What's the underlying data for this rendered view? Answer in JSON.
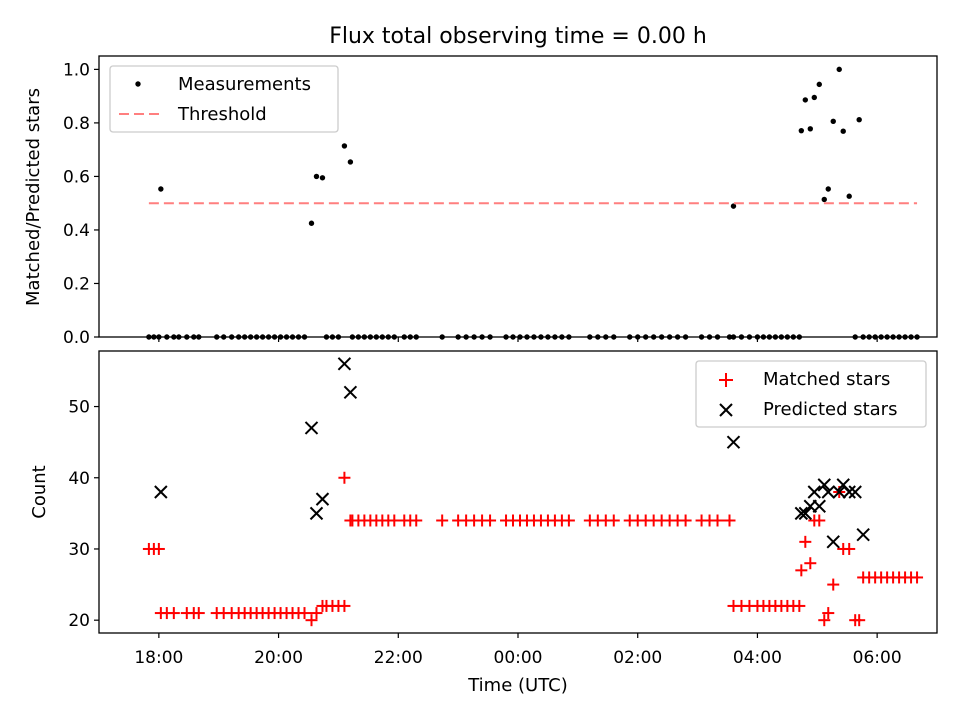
{
  "chart_data": [
    {
      "type": "scatter",
      "title": "Flux total observing time = 0.00 h",
      "xlabel": "",
      "ylabel": "Matched/Predicted stars",
      "xlim": [
        "17:00",
        "07:00"
      ],
      "ylim": [
        0,
        1.05
      ],
      "xticks": [
        "18:00",
        "20:00",
        "22:00",
        "00:00",
        "02:00",
        "04:00",
        "06:00"
      ],
      "yticks": [
        "0.0",
        "0.2",
        "0.4",
        "0.6",
        "0.8",
        "1.0"
      ],
      "legend_position": "upper-left",
      "grid": false,
      "legend": [
        "Measurements",
        "Threshold"
      ],
      "colors": {
        "measurements": "#000000",
        "threshold": "#ff7f7f"
      },
      "threshold": {
        "name": "Threshold",
        "y": 0.5,
        "x_range": [
          "17:50",
          "06:40"
        ]
      },
      "measurements": [
        [
          "17:50",
          0
        ],
        [
          "17:55",
          0
        ],
        [
          "18:00",
          0
        ],
        [
          "18:02",
          0.553
        ],
        [
          "18:08",
          0
        ],
        [
          "18:15",
          0
        ],
        [
          "18:20",
          0
        ],
        [
          "18:28",
          0
        ],
        [
          "18:35",
          0
        ],
        [
          "18:40",
          0
        ],
        [
          "18:58",
          0
        ],
        [
          "19:05",
          0
        ],
        [
          "19:13",
          0
        ],
        [
          "19:20",
          0
        ],
        [
          "19:26",
          0
        ],
        [
          "19:32",
          0
        ],
        [
          "19:38",
          0
        ],
        [
          "19:44",
          0
        ],
        [
          "19:50",
          0
        ],
        [
          "19:56",
          0
        ],
        [
          "20:02",
          0
        ],
        [
          "20:08",
          0
        ],
        [
          "20:14",
          0
        ],
        [
          "20:20",
          0
        ],
        [
          "20:26",
          0
        ],
        [
          "20:33",
          0.425
        ],
        [
          "20:38",
          0.6
        ],
        [
          "20:44",
          0.595
        ],
        [
          "20:48",
          0
        ],
        [
          "20:54",
          0
        ],
        [
          "21:00",
          0
        ],
        [
          "21:06",
          0.714
        ],
        [
          "21:12",
          0.654
        ],
        [
          "21:14",
          0
        ],
        [
          "21:20",
          0
        ],
        [
          "21:26",
          0
        ],
        [
          "21:32",
          0
        ],
        [
          "21:38",
          0
        ],
        [
          "21:44",
          0
        ],
        [
          "21:50",
          0
        ],
        [
          "21:56",
          0
        ],
        [
          "22:06",
          0
        ],
        [
          "22:12",
          0
        ],
        [
          "22:18",
          0
        ],
        [
          "22:44",
          0
        ],
        [
          "23:00",
          0
        ],
        [
          "23:08",
          0
        ],
        [
          "23:16",
          0
        ],
        [
          "23:24",
          0
        ],
        [
          "23:32",
          0
        ],
        [
          "23:48",
          0
        ],
        [
          "23:55",
          0
        ],
        [
          "00:02",
          0
        ],
        [
          "00:09",
          0
        ],
        [
          "00:16",
          0
        ],
        [
          "00:23",
          0
        ],
        [
          "00:30",
          0
        ],
        [
          "00:37",
          0
        ],
        [
          "00:44",
          0
        ],
        [
          "00:51",
          0
        ],
        [
          "01:12",
          0
        ],
        [
          "01:20",
          0
        ],
        [
          "01:28",
          0
        ],
        [
          "01:36",
          0
        ],
        [
          "01:52",
          0
        ],
        [
          "02:00",
          0
        ],
        [
          "02:08",
          0
        ],
        [
          "02:16",
          0
        ],
        [
          "02:24",
          0
        ],
        [
          "02:32",
          0
        ],
        [
          "02:40",
          0
        ],
        [
          "02:48",
          0
        ],
        [
          "03:04",
          0
        ],
        [
          "03:12",
          0
        ],
        [
          "03:20",
          0
        ],
        [
          "03:32",
          0
        ],
        [
          "03:36",
          0
        ],
        [
          "03:36",
          0.489
        ],
        [
          "03:44",
          0
        ],
        [
          "03:52",
          0
        ],
        [
          "04:00",
          0
        ],
        [
          "04:06",
          0
        ],
        [
          "04:12",
          0
        ],
        [
          "04:18",
          0
        ],
        [
          "04:24",
          0
        ],
        [
          "04:30",
          0
        ],
        [
          "04:36",
          0
        ],
        [
          "04:42",
          0
        ],
        [
          "04:44",
          0.771
        ],
        [
          "04:48",
          0.886
        ],
        [
          "04:53",
          0.778
        ],
        [
          "04:57",
          0.895
        ],
        [
          "05:02",
          0.944
        ],
        [
          "05:07",
          0.514
        ],
        [
          "05:11",
          0.553
        ],
        [
          "05:16",
          0.806
        ],
        [
          "05:22",
          1.0
        ],
        [
          "05:26",
          0.769
        ],
        [
          "05:32",
          0.526
        ],
        [
          "05:38",
          0
        ],
        [
          "05:42",
          0.812
        ],
        [
          "05:46",
          0
        ],
        [
          "05:52",
          0
        ],
        [
          "05:58",
          0
        ],
        [
          "06:04",
          0
        ],
        [
          "06:10",
          0
        ],
        [
          "06:16",
          0
        ],
        [
          "06:22",
          0
        ],
        [
          "06:28",
          0
        ],
        [
          "06:34",
          0
        ],
        [
          "06:40",
          0
        ]
      ]
    },
    {
      "type": "scatter",
      "title": "",
      "xlabel": "Time (UTC)",
      "ylabel": "Count",
      "xlim": [
        "17:00",
        "07:00"
      ],
      "ylim": [
        18.2,
        57.8
      ],
      "xticks": [
        "18:00",
        "20:00",
        "22:00",
        "00:00",
        "02:00",
        "04:00",
        "06:00"
      ],
      "yticks": [
        "20",
        "30",
        "40",
        "50"
      ],
      "legend_position": "upper-right",
      "grid": false,
      "legend": [
        "Matched stars",
        "Predicted stars"
      ],
      "colors": {
        "matched": "#ff0000",
        "predicted": "#000000"
      },
      "series": [
        {
          "name": "Matched stars",
          "marker": "+",
          "points": [
            [
              "17:50",
              30
            ],
            [
              "17:55",
              30
            ],
            [
              "18:00",
              30
            ],
            [
              "18:02",
              21
            ],
            [
              "18:08",
              21
            ],
            [
              "18:15",
              21
            ],
            [
              "18:28",
              21
            ],
            [
              "18:35",
              21
            ],
            [
              "18:40",
              21
            ],
            [
              "18:58",
              21
            ],
            [
              "19:05",
              21
            ],
            [
              "19:13",
              21
            ],
            [
              "19:20",
              21
            ],
            [
              "19:26",
              21
            ],
            [
              "19:32",
              21
            ],
            [
              "19:38",
              21
            ],
            [
              "19:44",
              21
            ],
            [
              "19:50",
              21
            ],
            [
              "19:56",
              21
            ],
            [
              "20:02",
              21
            ],
            [
              "20:08",
              21
            ],
            [
              "20:14",
              21
            ],
            [
              "20:20",
              21
            ],
            [
              "20:26",
              21
            ],
            [
              "20:33",
              20
            ],
            [
              "20:38",
              21
            ],
            [
              "20:44",
              22
            ],
            [
              "20:48",
              22
            ],
            [
              "20:54",
              22
            ],
            [
              "21:00",
              22
            ],
            [
              "21:06",
              22
            ],
            [
              "21:06",
              40
            ],
            [
              "21:12",
              34
            ],
            [
              "21:14",
              34
            ],
            [
              "21:20",
              34
            ],
            [
              "21:26",
              34
            ],
            [
              "21:32",
              34
            ],
            [
              "21:38",
              34
            ],
            [
              "21:44",
              34
            ],
            [
              "21:50",
              34
            ],
            [
              "21:56",
              34
            ],
            [
              "22:06",
              34
            ],
            [
              "22:12",
              34
            ],
            [
              "22:18",
              34
            ],
            [
              "22:44",
              34
            ],
            [
              "23:00",
              34
            ],
            [
              "23:08",
              34
            ],
            [
              "23:16",
              34
            ],
            [
              "23:24",
              34
            ],
            [
              "23:32",
              34
            ],
            [
              "23:48",
              34
            ],
            [
              "23:55",
              34
            ],
            [
              "00:02",
              34
            ],
            [
              "00:09",
              34
            ],
            [
              "00:16",
              34
            ],
            [
              "00:23",
              34
            ],
            [
              "00:30",
              34
            ],
            [
              "00:37",
              34
            ],
            [
              "00:44",
              34
            ],
            [
              "00:51",
              34
            ],
            [
              "01:12",
              34
            ],
            [
              "01:20",
              34
            ],
            [
              "01:28",
              34
            ],
            [
              "01:36",
              34
            ],
            [
              "01:52",
              34
            ],
            [
              "02:00",
              34
            ],
            [
              "02:08",
              34
            ],
            [
              "02:16",
              34
            ],
            [
              "02:24",
              34
            ],
            [
              "02:32",
              34
            ],
            [
              "02:40",
              34
            ],
            [
              "02:48",
              34
            ],
            [
              "03:04",
              34
            ],
            [
              "03:12",
              34
            ],
            [
              "03:20",
              34
            ],
            [
              "03:32",
              34
            ],
            [
              "03:36",
              22
            ],
            [
              "03:44",
              22
            ],
            [
              "03:52",
              22
            ],
            [
              "04:00",
              22
            ],
            [
              "04:06",
              22
            ],
            [
              "04:12",
              22
            ],
            [
              "04:18",
              22
            ],
            [
              "04:24",
              22
            ],
            [
              "04:30",
              22
            ],
            [
              "04:36",
              22
            ],
            [
              "04:42",
              22
            ],
            [
              "04:44",
              27
            ],
            [
              "04:48",
              31
            ],
            [
              "04:53",
              28
            ],
            [
              "04:57",
              34
            ],
            [
              "05:02",
              34
            ],
            [
              "05:07",
              20
            ],
            [
              "05:11",
              21
            ],
            [
              "05:16",
              25
            ],
            [
              "05:22",
              38
            ],
            [
              "05:26",
              30
            ],
            [
              "05:32",
              30
            ],
            [
              "05:38",
              20
            ],
            [
              "05:42",
              20
            ],
            [
              "05:46",
              26
            ],
            [
              "05:52",
              26
            ],
            [
              "05:58",
              26
            ],
            [
              "06:04",
              26
            ],
            [
              "06:10",
              26
            ],
            [
              "06:16",
              26
            ],
            [
              "06:22",
              26
            ],
            [
              "06:28",
              26
            ],
            [
              "06:34",
              26
            ],
            [
              "06:40",
              26
            ]
          ]
        },
        {
          "name": "Predicted stars",
          "marker": "x",
          "points": [
            [
              "18:02",
              38
            ],
            [
              "20:33",
              47
            ],
            [
              "20:38",
              35
            ],
            [
              "20:44",
              37
            ],
            [
              "21:06",
              56
            ],
            [
              "21:12",
              52
            ],
            [
              "03:36",
              45
            ],
            [
              "04:44",
              35
            ],
            [
              "04:48",
              35
            ],
            [
              "04:53",
              36
            ],
            [
              "04:57",
              38
            ],
            [
              "05:02",
              36
            ],
            [
              "05:07",
              39
            ],
            [
              "05:11",
              38
            ],
            [
              "05:16",
              31
            ],
            [
              "05:22",
              38
            ],
            [
              "05:26",
              39
            ],
            [
              "05:32",
              38
            ],
            [
              "05:38",
              38
            ],
            [
              "05:46",
              32
            ]
          ]
        }
      ]
    }
  ]
}
